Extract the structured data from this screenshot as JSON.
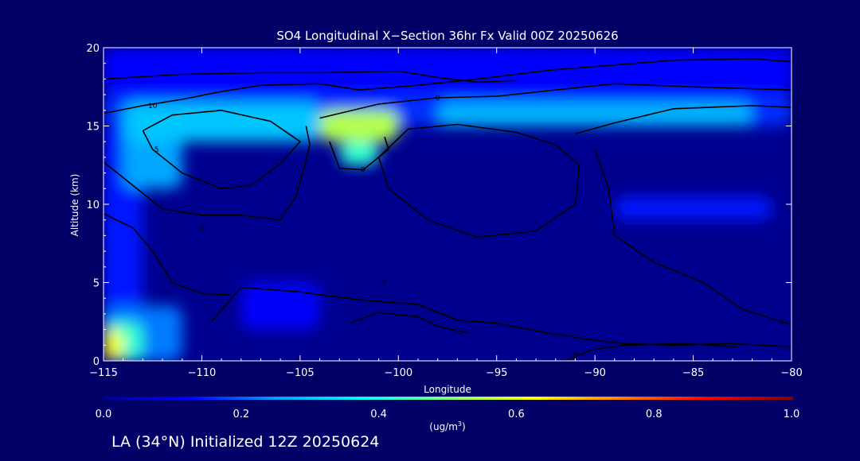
{
  "chart_data": {
    "type": "heatmap",
    "title": "SO4 Longitudinal X−Section 36hr  Fx Valid 00Z 20250626",
    "xlabel": "Longitude",
    "ylabel": "Altitude (km)",
    "xlim": [
      -115,
      -80
    ],
    "ylim": [
      0,
      20
    ],
    "x_ticks": [
      -115,
      -110,
      -105,
      -100,
      -95,
      -90,
      -85,
      -80
    ],
    "x_tick_labels": [
      "−115",
      "−110",
      "−105",
      "−100",
      "−95",
      "−90",
      "−85",
      "−80"
    ],
    "y_ticks": [
      0,
      5,
      10,
      15,
      20
    ],
    "y_tick_labels": [
      "0",
      "5",
      "10",
      "15",
      "20"
    ],
    "colorbar": {
      "min": 0.0,
      "max": 1.0,
      "ticks": [
        0.0,
        0.2,
        0.4,
        0.6,
        0.8,
        1.0
      ],
      "tick_labels": [
        "0.0",
        "0.2",
        "0.4",
        "0.6",
        "0.8",
        "1.0"
      ],
      "units": "(ug/m",
      "units_sup": "3",
      "units_close": ")",
      "colormap": [
        "#00008f",
        "#0000ff",
        "#00a0ff",
        "#00ffff",
        "#80ff80",
        "#ffff00",
        "#ff8000",
        "#ff0000",
        "#800000"
      ]
    },
    "field_cells": [
      {
        "x": [
          -115,
          -114
        ],
        "y": [
          0,
          2
        ],
        "value": 0.62
      },
      {
        "x": [
          -115,
          -113
        ],
        "y": [
          0,
          2.5
        ],
        "value": 0.42
      },
      {
        "x": [
          -115,
          -111
        ],
        "y": [
          0,
          3.5
        ],
        "value": 0.22
      },
      {
        "x": [
          -115,
          -80
        ],
        "y": [
          17,
          20
        ],
        "value": 0.13
      },
      {
        "x": [
          -115,
          -80
        ],
        "y": [
          15,
          17
        ],
        "value": 0.16
      },
      {
        "x": [
          -114,
          -104
        ],
        "y": [
          14,
          16.5
        ],
        "value": 0.3
      },
      {
        "x": [
          -114,
          -111
        ],
        "y": [
          11,
          15
        ],
        "value": 0.26
      },
      {
        "x": [
          -104,
          -100
        ],
        "y": [
          14,
          16
        ],
        "value": 0.55
      },
      {
        "x": [
          -103,
          -101
        ],
        "y": [
          12.5,
          14
        ],
        "value": 0.42
      },
      {
        "x": [
          -98,
          -82
        ],
        "y": [
          15,
          16.5
        ],
        "value": 0.28
      },
      {
        "x": [
          -89,
          -81
        ],
        "y": [
          9,
          10.5
        ],
        "value": 0.14
      },
      {
        "x": [
          -115,
          -113
        ],
        "y": [
          3,
          15
        ],
        "value": 0.14
      },
      {
        "x": [
          -108,
          -104
        ],
        "y": [
          2,
          5
        ],
        "value": 0.12
      }
    ],
    "contours": [
      {
        "label": "10",
        "label_pos": [
          -112.5,
          16.3
        ],
        "points": [
          [
            -115,
            15.8
          ],
          [
            -113,
            16.3
          ],
          [
            -111,
            16.7
          ],
          [
            -109,
            17.2
          ],
          [
            -107,
            17.6
          ],
          [
            -104,
            17.7
          ],
          [
            -102,
            17.3
          ],
          [
            -99,
            17.6
          ],
          [
            -96,
            18
          ],
          [
            -92,
            18.6
          ],
          [
            -89,
            18.9
          ],
          [
            -86,
            19.2
          ],
          [
            -82,
            19.3
          ],
          [
            -80,
            19.1
          ]
        ]
      },
      {
        "label": "0",
        "label_pos": [
          -98,
          16.8
        ],
        "points": [
          [
            -104,
            15.5
          ],
          [
            -101,
            16.4
          ],
          [
            -98,
            16.8
          ],
          [
            -95,
            16.9
          ],
          [
            -92,
            17.3
          ],
          [
            -89,
            17.7
          ],
          [
            -85,
            17.5
          ],
          [
            -80,
            17.3
          ]
        ]
      },
      {
        "label": "",
        "label_pos": null,
        "points": [
          [
            -115,
            18
          ],
          [
            -111,
            18.3
          ],
          [
            -107,
            18.4
          ],
          [
            -104,
            18.4
          ],
          [
            -100,
            18.5
          ],
          [
            -98,
            18.1
          ],
          [
            -96,
            17.8
          ],
          [
            -94,
            17.9
          ]
        ]
      },
      {
        "label": "5",
        "label_pos": [
          -112.3,
          13.5
        ],
        "points": [
          [
            -113,
            14.7
          ],
          [
            -112.5,
            13.5
          ],
          [
            -111,
            12
          ],
          [
            -109,
            11
          ],
          [
            -107.5,
            11.2
          ],
          [
            -106,
            12.6
          ],
          [
            -105,
            14
          ],
          [
            -106.5,
            15.3
          ],
          [
            -109,
            16
          ],
          [
            -111.5,
            15.7
          ],
          [
            -113,
            14.7
          ]
        ]
      },
      {
        "label": "0",
        "label_pos": [
          -110,
          8.5
        ],
        "points": [
          [
            -115,
            12.7
          ],
          [
            -113.5,
            11.2
          ],
          [
            -112,
            9.7
          ],
          [
            -110,
            9.3
          ],
          [
            -108,
            9.3
          ],
          [
            -106,
            9
          ],
          [
            -105.2,
            10.5
          ],
          [
            -104.5,
            13.8
          ],
          [
            -104.7,
            15
          ]
        ]
      },
      {
        "label": "",
        "label_pos": null,
        "points": [
          [
            -115,
            9.4
          ],
          [
            -113.5,
            8.5
          ],
          [
            -112.5,
            7
          ],
          [
            -111.5,
            5
          ],
          [
            -110,
            4.3
          ],
          [
            -108.5,
            4.2
          ]
        ]
      },
      {
        "label": "0",
        "label_pos": [
          -101.8,
          12.2
        ],
        "points": [
          [
            -103.5,
            14
          ],
          [
            -103,
            12.3
          ],
          [
            -101.8,
            12.2
          ],
          [
            -100.5,
            13.5
          ],
          [
            -100.7,
            14.3
          ]
        ]
      },
      {
        "label": "",
        "label_pos": null,
        "points": [
          [
            -99.5,
            14.8
          ],
          [
            -101,
            13
          ],
          [
            -100.5,
            11
          ],
          [
            -98.5,
            9
          ],
          [
            -96,
            7.9
          ],
          [
            -93,
            8.3
          ],
          [
            -91,
            10
          ],
          [
            -90.8,
            12.5
          ],
          [
            -92,
            13.8
          ],
          [
            -94,
            14.6
          ],
          [
            -97,
            15.1
          ],
          [
            -99.5,
            14.8
          ]
        ]
      },
      {
        "label": "",
        "label_pos": null,
        "points": [
          [
            -91,
            14.5
          ],
          [
            -89,
            15.2
          ],
          [
            -86,
            16.1
          ],
          [
            -82,
            16.3
          ],
          [
            -80,
            16.2
          ]
        ]
      },
      {
        "label": "0",
        "label_pos": [
          -100.7,
          5
        ],
        "points": [
          [
            -109.5,
            2.5
          ],
          [
            -108,
            4.7
          ],
          [
            -105,
            4.4
          ],
          [
            -102,
            3.9
          ],
          [
            -99,
            3.6
          ],
          [
            -97,
            2.6
          ],
          [
            -95,
            2.4
          ],
          [
            -92.5,
            1.8
          ],
          [
            -90.5,
            1.4
          ],
          [
            -88.5,
            1.1
          ],
          [
            -86,
            1
          ],
          [
            -83,
            1.1
          ],
          [
            -80,
            0.9
          ]
        ]
      },
      {
        "label": "0",
        "label_pos": [
          -91,
          0.4
        ],
        "points": [
          [
            -102.5,
            2.4
          ],
          [
            -101,
            3.1
          ],
          [
            -99,
            2.8
          ],
          [
            -98,
            2.2
          ],
          [
            -96.5,
            1.8
          ]
        ]
      },
      {
        "label": "",
        "label_pos": null,
        "points": [
          [
            -91.5,
            0
          ],
          [
            -90.2,
            0.7
          ],
          [
            -88.5,
            1
          ],
          [
            -85.5,
            1.1
          ],
          [
            -82.8,
            0.9
          ]
        ]
      },
      {
        "label": "0",
        "label_pos": [
          -80.5,
          2.5
        ],
        "points": [
          [
            -90,
            13.5
          ],
          [
            -89.3,
            11
          ],
          [
            -89,
            8
          ],
          [
            -87,
            6.3
          ],
          [
            -84.5,
            5
          ],
          [
            -82.5,
            3.3
          ],
          [
            -80.5,
            2.5
          ],
          [
            -80,
            2.3
          ]
        ]
      }
    ]
  },
  "footer": {
    "location_label": "LA (34°N) Initialized 12Z 20250624"
  },
  "colors": {
    "background": "#000066",
    "contour": "#000000",
    "text": "#ffffff"
  }
}
